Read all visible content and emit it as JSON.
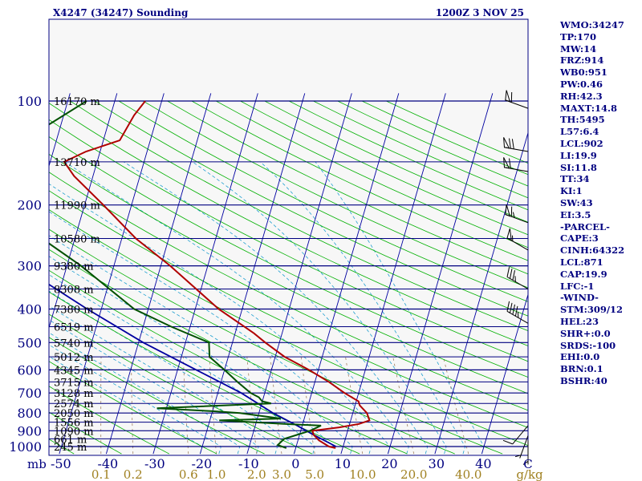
{
  "chart_data": {
    "type": "skewt",
    "title_left": "X4247 (34247) Sounding",
    "title_right": "1200Z  3 NOV 25",
    "pressure_unit": "mb",
    "mixing_ratio_unit": "g/kg",
    "pressure_axis": [
      {
        "p": 100,
        "label": "100"
      },
      {
        "p": 200,
        "label": "200"
      },
      {
        "p": 300,
        "label": "300"
      },
      {
        "p": 400,
        "label": "400"
      },
      {
        "p": 500,
        "label": "500"
      },
      {
        "p": 600,
        "label": "600"
      },
      {
        "p": 700,
        "label": "700"
      },
      {
        "p": 800,
        "label": "800"
      },
      {
        "p": 900,
        "label": "900"
      },
      {
        "p": 1000,
        "label": "1000"
      }
    ],
    "height_labels": [
      {
        "p": 100,
        "label": "16170 m"
      },
      {
        "p": 150,
        "label": "13710 m"
      },
      {
        "p": 200,
        "label": "11990 m"
      },
      {
        "p": 250,
        "label": "10580 m"
      },
      {
        "p": 300,
        "label": "9380 m"
      },
      {
        "p": 350,
        "label": "8308 m"
      },
      {
        "p": 400,
        "label": "7380 m"
      },
      {
        "p": 450,
        "label": "6519 m"
      },
      {
        "p": 500,
        "label": "5740 m"
      },
      {
        "p": 550,
        "label": "5012 m"
      },
      {
        "p": 600,
        "label": "4345 m"
      },
      {
        "p": 650,
        "label": "3715 m"
      },
      {
        "p": 700,
        "label": "3128 m"
      },
      {
        "p": 750,
        "label": "2574 m"
      },
      {
        "p": 800,
        "label": "2050 m"
      },
      {
        "p": 850,
        "label": "1556 m"
      },
      {
        "p": 900,
        "label": "1090 m"
      },
      {
        "p": 950,
        "label": "661 m"
      },
      {
        "p": 1000,
        "label": "245 m"
      }
    ],
    "temperature_ticks": [
      {
        "t": -50,
        "label": "-50"
      },
      {
        "t": -40,
        "label": "-40"
      },
      {
        "t": -30,
        "label": "-30"
      },
      {
        "t": -20,
        "label": "-20"
      },
      {
        "t": -10,
        "label": "-10"
      },
      {
        "t": 0,
        "label": "0"
      },
      {
        "t": 10,
        "label": "10"
      },
      {
        "t": 20,
        "label": "20"
      },
      {
        "t": 30,
        "label": "30"
      },
      {
        "t": 40,
        "label": "40"
      }
    ],
    "mixing_ratio_ticks": [
      {
        "w": 0.1,
        "label": "0.1"
      },
      {
        "w": 0.2,
        "label": "0.2"
      },
      {
        "w": 0.6,
        "label": "0.6"
      },
      {
        "w": 1.0,
        "label": "1.0"
      },
      {
        "w": 2.0,
        "label": "2.0"
      },
      {
        "w": 3.0,
        "label": "3.0"
      },
      {
        "w": 5.0,
        "label": "5.0"
      },
      {
        "w": 10.0,
        "label": "10.0"
      },
      {
        "w": 20.0,
        "label": "20.0"
      },
      {
        "w": 40.0,
        "label": "40.0"
      }
    ],
    "temperature_profile": [
      {
        "p": 1010,
        "t": 8.5
      },
      {
        "p": 1000,
        "t": 7.0
      },
      {
        "p": 960,
        "t": 4.5
      },
      {
        "p": 925,
        "t": 3.0
      },
      {
        "p": 900,
        "t": 2.5
      },
      {
        "p": 880,
        "t": 8.0
      },
      {
        "p": 860,
        "t": 12.0
      },
      {
        "p": 840,
        "t": 14.0
      },
      {
        "p": 800,
        "t": 13.0
      },
      {
        "p": 760,
        "t": 11.0
      },
      {
        "p": 740,
        "t": 10.5
      },
      {
        "p": 700,
        "t": 7.0
      },
      {
        "p": 650,
        "t": 3.0
      },
      {
        "p": 600,
        "t": -2.0
      },
      {
        "p": 550,
        "t": -8.0
      },
      {
        "p": 500,
        "t": -13.0
      },
      {
        "p": 470,
        "t": -16.0
      },
      {
        "p": 400,
        "t": -25.0
      },
      {
        "p": 300,
        "t": -38.0
      },
      {
        "p": 250,
        "t": -47.0
      },
      {
        "p": 200,
        "t": -56.0
      },
      {
        "p": 165,
        "t": -64.0
      },
      {
        "p": 150,
        "t": -67.0
      },
      {
        "p": 140,
        "t": -63.0
      },
      {
        "p": 130,
        "t": -56.5
      },
      {
        "p": 110,
        "t": -55.0
      },
      {
        "p": 100,
        "t": -53.5
      }
    ],
    "dewpoint_profile": [
      {
        "p": 1010,
        "t": -2.0
      },
      {
        "p": 990,
        "t": -4.0
      },
      {
        "p": 950,
        "t": -3.0
      },
      {
        "p": 900,
        "t": 2.0
      },
      {
        "p": 870,
        "t": 4.0
      },
      {
        "p": 860,
        "t": -4.0
      },
      {
        "p": 840,
        "t": -18.0
      },
      {
        "p": 830,
        "t": -5.0
      },
      {
        "p": 800,
        "t": -14.0
      },
      {
        "p": 790,
        "t": -20.0
      },
      {
        "p": 775,
        "t": -32.0
      },
      {
        "p": 750,
        "t": -8.0
      },
      {
        "p": 740,
        "t": -10.0
      },
      {
        "p": 720,
        "t": -11.0
      },
      {
        "p": 700,
        "t": -13.0
      },
      {
        "p": 650,
        "t": -16.5
      },
      {
        "p": 600,
        "t": -20.0
      },
      {
        "p": 550,
        "t": -24.0
      },
      {
        "p": 500,
        "t": -25.0
      },
      {
        "p": 450,
        "t": -34.0
      },
      {
        "p": 400,
        "t": -43.0
      },
      {
        "p": 300,
        "t": -57.0
      },
      {
        "p": 250,
        "t": -67.0
      },
      {
        "p": 200,
        "t": -78.0
      },
      {
        "p": 170,
        "t": -84.0
      },
      {
        "p": 155,
        "t": -87.0
      },
      {
        "p": 140,
        "t": -84.5
      },
      {
        "p": 130,
        "t": -77.0
      },
      {
        "p": 100,
        "t": -66.0
      }
    ],
    "parcel_profile": [
      {
        "p": 1000,
        "t": 8.5
      },
      {
        "p": 925,
        "t": 3.0
      },
      {
        "p": 871,
        "t": -1.0
      },
      {
        "p": 800,
        "t": -7.0
      },
      {
        "p": 700,
        "t": -15.0
      },
      {
        "p": 600,
        "t": -26.0
      },
      {
        "p": 500,
        "t": -39.0
      },
      {
        "p": 400,
        "t": -53.0
      },
      {
        "p": 300,
        "t": -70.0
      },
      {
        "p": 200,
        "t": -91.0
      },
      {
        "p": 130,
        "t": -111.0
      }
    ],
    "wind_barbs": [
      {
        "p": 105,
        "dir": 290,
        "spd": 60
      },
      {
        "p": 140,
        "dir": 280,
        "spd": 70
      },
      {
        "p": 160,
        "dir": 280,
        "spd": 60
      },
      {
        "p": 225,
        "dir": 290,
        "spd": 65
      },
      {
        "p": 270,
        "dir": 300,
        "spd": 55
      },
      {
        "p": 350,
        "dir": 300,
        "spd": 35
      },
      {
        "p": 440,
        "dir": 300,
        "spd": 45
      },
      {
        "p": 870,
        "dir": 220,
        "spd": 10
      },
      {
        "p": 930,
        "dir": 200,
        "spd": 5
      },
      {
        "p": 960,
        "dir": 180,
        "spd": 5
      }
    ]
  },
  "indices": [
    "WMO:34247",
    "TP:170",
    "MW:14",
    "FRZ:914",
    "WB0:951",
    "PW:0.46",
    "RH:42.3",
    "MAXT:14.8",
    "TH:5495",
    "L57:6.4",
    "LCL:902",
    "LI:19.9",
    "SI:11.8",
    "TT:34",
    "KI:1",
    "SW:43",
    "EI:3.5",
    "-PARCEL-",
    "CAPE:3",
    "CINH:64322",
    "LCL:871",
    "CAP:19.9",
    "LFC:-1",
    "-WIND-",
    "STM:309/12",
    "HEL:23",
    "SHR+:0.0",
    "SRDS:-100",
    "EHI:0.0",
    "BRN:0.1",
    "BSHR:40"
  ],
  "colors": {
    "isobar": "#000080",
    "isotherm": "#0000a0",
    "dry_adiabat": "#00b000",
    "moist_adiabat": "#20a0d0",
    "mixing_ratio": "#a08060",
    "temperature": "#b00000",
    "dewpoint": "#005000",
    "parcel": "#0000a0",
    "axis_text": "#000080",
    "height_text": "#000000",
    "mixing_text": "#a08020",
    "barb": "#000000",
    "border": "#000080"
  }
}
